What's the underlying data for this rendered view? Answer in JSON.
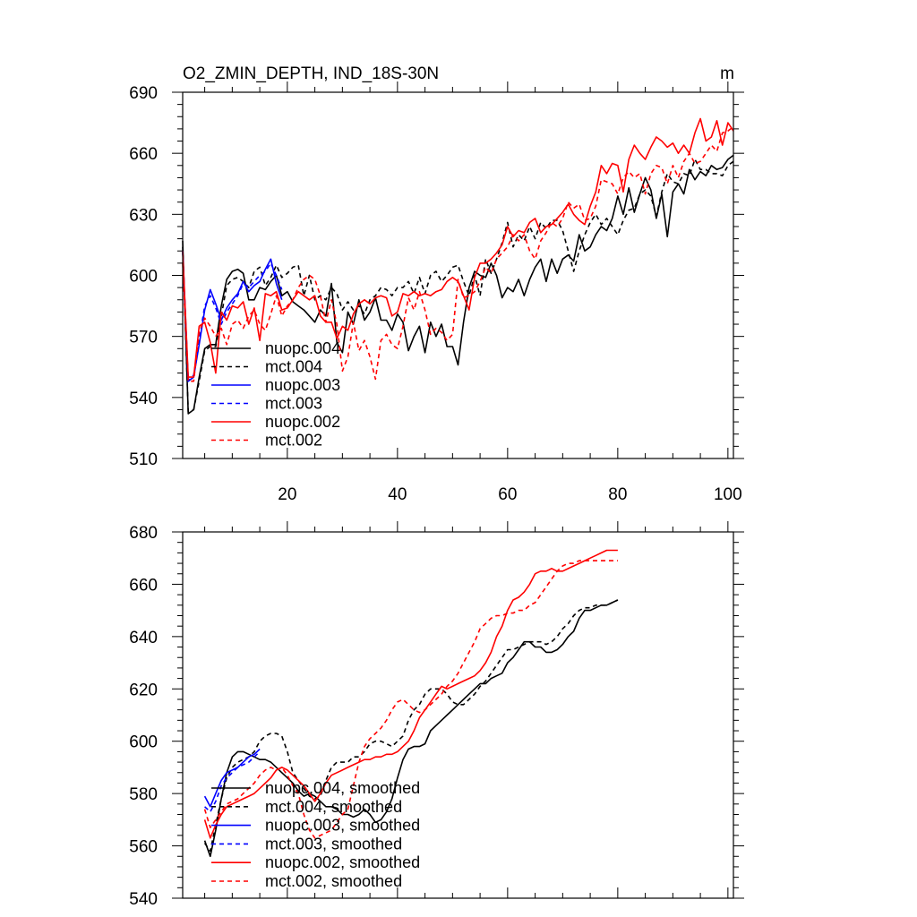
{
  "colors": {
    "black": "#000000",
    "blue": "#0000ff",
    "red": "#ff0000"
  },
  "chart_data": [
    {
      "type": "line",
      "title": "O2_ZMIN_DEPTH, IND_18S-30N",
      "units": "m",
      "xlim": [
        1,
        101
      ],
      "ylim": [
        510,
        690
      ],
      "xticks": [
        20,
        40,
        60,
        80,
        100
      ],
      "yticks": [
        510,
        540,
        570,
        600,
        630,
        660,
        690
      ],
      "series": [
        {
          "name": "nuopc.004",
          "color": "#000000",
          "dash": false,
          "x_start": 1,
          "values": [
            617,
            532,
            534,
            550,
            564,
            566,
            566,
            585,
            598,
            602,
            603,
            601,
            588,
            588,
            594,
            593,
            597,
            600,
            590,
            592,
            587,
            585,
            583,
            580,
            577,
            583,
            580,
            596,
            567,
            562,
            582,
            576,
            588,
            578,
            582,
            589,
            578,
            578,
            573,
            581,
            577,
            563,
            570,
            575,
            562,
            577,
            570,
            576,
            565,
            565,
            556,
            577,
            594,
            602,
            600,
            599,
            606,
            600,
            589,
            594,
            592,
            598,
            590,
            598,
            604,
            608,
            597,
            608,
            601,
            608,
            610,
            607,
            620,
            612,
            614,
            620,
            624,
            622,
            628,
            639,
            630,
            643,
            631,
            640,
            648,
            642,
            628,
            640,
            619,
            641,
            645,
            640,
            652,
            647,
            651,
            649,
            654,
            652,
            653,
            657,
            659
          ]
        },
        {
          "name": "mct.004",
          "color": "#000000",
          "dash": true,
          "x_start": 1,
          "values": [
            614,
            533,
            534,
            548,
            563,
            565,
            565,
            580,
            595,
            598,
            599,
            597,
            594,
            602,
            604,
            595,
            599,
            605,
            599,
            601,
            604,
            605,
            590,
            600,
            588,
            590,
            588,
            594,
            591,
            583,
            587,
            583,
            585,
            581,
            588,
            590,
            594,
            593,
            590,
            594,
            594,
            597,
            591,
            599,
            591,
            600,
            602,
            597,
            600,
            604,
            605,
            597,
            590,
            600,
            590,
            608,
            601,
            608,
            616,
            626,
            614,
            620,
            617,
            624,
            618,
            626,
            623,
            627,
            627,
            622,
            612,
            602,
            612,
            620,
            626,
            630,
            625,
            628,
            624,
            620,
            627,
            632,
            633,
            640,
            642,
            639,
            629,
            641,
            650,
            646,
            645,
            650,
            649,
            657,
            652,
            652,
            650,
            650,
            649,
            654,
            656
          ]
        },
        {
          "name": "nuopc.003",
          "color": "#0000ff",
          "dash": false,
          "x_start": 1,
          "values": [
            612,
            548,
            550,
            566,
            583,
            593,
            586,
            578,
            584,
            588,
            591,
            597,
            592,
            595,
            597,
            603,
            608,
            596,
            588
          ]
        },
        {
          "name": "mct.003",
          "color": "#0000ff",
          "dash": true,
          "x_start": 1,
          "values": [
            612,
            548,
            551,
            568,
            585,
            590,
            584,
            576,
            582,
            586,
            590,
            596,
            594,
            597,
            600,
            602,
            606,
            600,
            593
          ]
        },
        {
          "name": "nuopc.002",
          "color": "#ff0000",
          "dash": false,
          "x_start": 1,
          "values": [
            612,
            550,
            550,
            575,
            577,
            567,
            552,
            582,
            578,
            585,
            584,
            587,
            576,
            584,
            568,
            591,
            590,
            592,
            583,
            584,
            588,
            592,
            590,
            588,
            590,
            580,
            577,
            577,
            569,
            575,
            573,
            581,
            586,
            588,
            586,
            589,
            590,
            589,
            580,
            582,
            591,
            590,
            592,
            590,
            591,
            590,
            592,
            593,
            597,
            599,
            597,
            590,
            583,
            599,
            606,
            606,
            608,
            611,
            615,
            624,
            619,
            622,
            621,
            626,
            628,
            621,
            624,
            625,
            628,
            631,
            635,
            630,
            627,
            625,
            634,
            641,
            654,
            650,
            655,
            654,
            641,
            657,
            664,
            660,
            657,
            663,
            668,
            666,
            663,
            665,
            660,
            664,
            660,
            670,
            677,
            666,
            668,
            676,
            664,
            675,
            671
          ]
        },
        {
          "name": "mct.002",
          "color": "#ff0000",
          "dash": true,
          "x_start": 1,
          "values": [
            606,
            548,
            548,
            572,
            579,
            575,
            570,
            574,
            566,
            576,
            578,
            574,
            580,
            583,
            576,
            573,
            581,
            590,
            580,
            585,
            588,
            594,
            598,
            600,
            598,
            590,
            577,
            588,
            576,
            553,
            560,
            577,
            563,
            568,
            560,
            549,
            568,
            571,
            566,
            564,
            575,
            589,
            583,
            592,
            583,
            571,
            574,
            572,
            568,
            571,
            598,
            589,
            590,
            592,
            597,
            604,
            601,
            608,
            611,
            614,
            620,
            617,
            620,
            612,
            608,
            617,
            621,
            626,
            624,
            628,
            636,
            633,
            635,
            627,
            628,
            634,
            647,
            646,
            645,
            640,
            648,
            651,
            648,
            650,
            640,
            650,
            654,
            653,
            645,
            654,
            648,
            656,
            660,
            655,
            656,
            660,
            664,
            661,
            670,
            671,
            673
          ]
        }
      ],
      "legend": [
        "nuopc.004",
        "mct.004",
        "nuopc.003",
        "mct.003",
        "nuopc.002",
        "mct.002"
      ],
      "legend_placement": "bottom-left"
    },
    {
      "type": "line",
      "title": "",
      "xlim": [
        1,
        101
      ],
      "ylim": [
        540,
        680
      ],
      "xticks": [
        20,
        40,
        60,
        80,
        100
      ],
      "yticks": [
        540,
        560,
        580,
        600,
        620,
        640,
        660,
        680
      ],
      "series": [
        {
          "name": "nuopc.004, smoothed",
          "color": "#000000",
          "dash": false,
          "x_start": 5,
          "values": [
            562,
            556,
            566,
            578,
            588,
            594,
            596,
            596,
            595,
            594,
            593,
            593,
            592,
            590,
            588,
            586,
            584,
            581,
            579,
            580,
            579,
            577,
            575,
            575,
            574,
            572,
            572,
            571,
            572,
            574,
            572,
            569,
            570,
            573,
            578,
            586,
            593,
            597,
            598,
            598,
            599,
            604,
            606,
            608,
            610,
            612,
            614,
            616,
            618,
            620,
            622,
            622,
            624,
            625,
            626,
            630,
            632,
            635,
            638,
            638,
            636,
            636,
            634,
            634,
            635,
            637,
            640,
            642,
            647,
            650,
            650,
            651,
            652,
            652,
            653,
            654
          ]
        },
        {
          "name": "mct.004, smoothed",
          "color": "#000000",
          "dash": true,
          "x_start": 5,
          "values": [
            561,
            558,
            568,
            578,
            586,
            590,
            592,
            593,
            594,
            596,
            600,
            602,
            603,
            603,
            602,
            596,
            588,
            585,
            582,
            579,
            578,
            579,
            585,
            590,
            592,
            592,
            592,
            594,
            594,
            596,
            599,
            600,
            600,
            599,
            598,
            600,
            602,
            608,
            612,
            614,
            618,
            620,
            620,
            620,
            618,
            615,
            614,
            614,
            616,
            618,
            621,
            623,
            626,
            629,
            632,
            635,
            635,
            636,
            637,
            638,
            638,
            638,
            637,
            638,
            640,
            643,
            645,
            648,
            650,
            651,
            651,
            652,
            652,
            652,
            653,
            654
          ]
        },
        {
          "name": "nuopc.003, smoothed",
          "color": "#0000ff",
          "dash": false,
          "x_start": 5,
          "values": [
            579,
            575,
            580,
            585,
            588,
            589,
            590,
            592,
            594,
            595,
            597
          ]
        },
        {
          "name": "mct.003, smoothed",
          "color": "#0000ff",
          "dash": true,
          "x_start": 5,
          "values": [
            575,
            573,
            577,
            583,
            586,
            588,
            590,
            591,
            592,
            594,
            596
          ]
        },
        {
          "name": "nuopc.002, smoothed",
          "color": "#ff0000",
          "dash": false,
          "x_start": 5,
          "values": [
            570,
            563,
            568,
            572,
            575,
            576,
            577,
            578,
            579,
            580,
            582,
            584,
            586,
            589,
            590,
            589,
            587,
            585,
            583,
            580,
            577,
            580,
            584,
            587,
            588,
            589,
            590,
            591,
            592,
            593,
            593,
            594,
            594,
            595,
            595,
            596,
            598,
            600,
            604,
            609,
            612,
            615,
            618,
            621,
            620,
            621,
            622,
            623,
            624,
            625,
            627,
            630,
            634,
            640,
            644,
            650,
            654,
            655,
            657,
            660,
            664,
            665,
            665,
            666,
            665,
            665,
            666,
            667,
            668,
            669,
            670,
            671,
            672,
            673,
            673,
            673
          ]
        },
        {
          "name": "mct.002, smoothed",
          "color": "#ff0000",
          "dash": true,
          "x_start": 5,
          "values": [
            574,
            567,
            570,
            573,
            576,
            577,
            578,
            580,
            582,
            584,
            587,
            589,
            590,
            589,
            590,
            587,
            583,
            580,
            572,
            566,
            563,
            564,
            565,
            566,
            569,
            572,
            574,
            583,
            592,
            598,
            601,
            603,
            605,
            608,
            612,
            615,
            616,
            614,
            612,
            611,
            612,
            614,
            616,
            618,
            621,
            623,
            626,
            630,
            634,
            638,
            643,
            645,
            647,
            648,
            648,
            649,
            649,
            650,
            650,
            652,
            653,
            656,
            659,
            662,
            665,
            667,
            668,
            668,
            669,
            669,
            669,
            669,
            669,
            669,
            669,
            669
          ]
        }
      ],
      "legend": [
        "nuopc.004, smoothed",
        "mct.004, smoothed",
        "nuopc.003, smoothed",
        "mct.003, smoothed",
        "nuopc.002, smoothed",
        "mct.002, smoothed"
      ],
      "legend_placement": "bottom-left"
    }
  ]
}
